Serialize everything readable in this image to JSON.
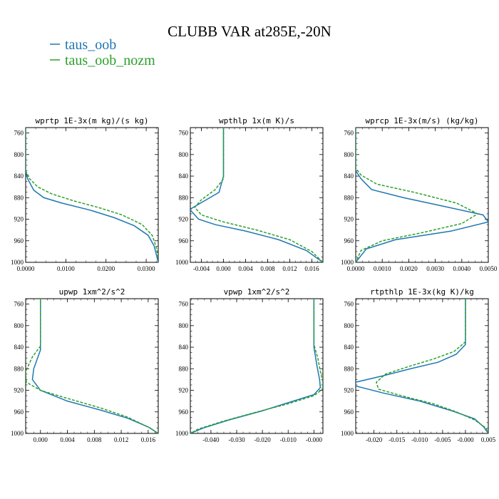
{
  "figure": {
    "title": "CLUBB VAR at285E,-20N",
    "legend": [
      {
        "name": "taus_oob",
        "color": "#1f77b4",
        "dash": "solid"
      },
      {
        "name": "taus_oob_nozm",
        "color": "#2ca02c",
        "dash": "dashed"
      }
    ]
  },
  "chart_data": [
    {
      "type": "line",
      "title": "wprtp  1E-3x(m kg)/(s kg)",
      "xlim": [
        0.0,
        0.033
      ],
      "ylim": [
        1000,
        750
      ],
      "xticks": [
        0.0,
        0.01,
        0.02,
        0.03
      ],
      "xtick_labels": [
        "0.0000",
        "0.0100",
        "0.0200",
        "0.0300"
      ],
      "yticks": [
        760,
        800,
        840,
        880,
        920,
        960,
        1000
      ],
      "series": [
        {
          "name": "taus_oob",
          "points": [
            [
              0.0,
              750
            ],
            [
              0.0,
              830
            ],
            [
              0.0005,
              845
            ],
            [
              0.002,
              866
            ],
            [
              0.0045,
              880
            ],
            [
              0.009,
              890
            ],
            [
              0.016,
              903
            ],
            [
              0.022,
              917
            ],
            [
              0.027,
              932
            ],
            [
              0.0305,
              950
            ],
            [
              0.032,
              970
            ],
            [
              0.033,
              1000
            ]
          ]
        },
        {
          "name": "taus_oob_nozm",
          "points": [
            [
              0.0,
              750
            ],
            [
              0.0,
              830
            ],
            [
              0.001,
              845
            ],
            [
              0.003,
              860
            ],
            [
              0.0065,
              873
            ],
            [
              0.012,
              886
            ],
            [
              0.018,
              898
            ],
            [
              0.024,
              912
            ],
            [
              0.029,
              930
            ],
            [
              0.0315,
              950
            ],
            [
              0.0325,
              972
            ],
            [
              0.0332,
              1000
            ]
          ]
        }
      ]
    },
    {
      "type": "line",
      "title": "wpthlp  1x(m K)/s",
      "xlim": [
        -0.006,
        0.018
      ],
      "ylim": [
        1000,
        750
      ],
      "xticks": [
        -0.004,
        0.0,
        0.004,
        0.008,
        0.012,
        0.016
      ],
      "xtick_labels": [
        "-0.004",
        "0.000",
        "0.004",
        "0.008",
        "0.012",
        "0.016"
      ],
      "series": [
        {
          "name": "taus_oob",
          "points": [
            [
              0.0,
              750
            ],
            [
              0.0,
              840
            ],
            [
              -0.0008,
              870
            ],
            [
              -0.0058,
              900
            ],
            [
              -0.006,
              903
            ],
            [
              -0.0045,
              920
            ],
            [
              -0.0015,
              930
            ],
            [
              0.004,
              942
            ],
            [
              0.01,
              958
            ],
            [
              0.015,
              978
            ],
            [
              0.018,
              1000
            ]
          ]
        },
        {
          "name": "taus_oob_nozm",
          "points": [
            [
              0.0,
              750
            ],
            [
              0.0,
              845
            ],
            [
              -0.0015,
              865
            ],
            [
              -0.004,
              884
            ],
            [
              -0.0052,
              898
            ],
            [
              -0.004,
              912
            ],
            [
              0.0,
              925
            ],
            [
              0.006,
              940
            ],
            [
              0.012,
              958
            ],
            [
              0.016,
              980
            ],
            [
              0.018,
              1000
            ]
          ]
        }
      ]
    },
    {
      "type": "line",
      "title": "wprcp  1E-3x(m/s) (kg/kg)",
      "xlim": [
        0.0,
        0.005
      ],
      "ylim": [
        1000,
        750
      ],
      "xticks": [
        0.0,
        0.001,
        0.002,
        0.003,
        0.004,
        0.005
      ],
      "xtick_labels": [
        "0.0000",
        "0.0010",
        "0.0020",
        "0.0030",
        "0.0040",
        "0.0050"
      ],
      "series": [
        {
          "name": "taus_oob",
          "points": [
            [
              0.0,
              750
            ],
            [
              0.0,
              830
            ],
            [
              0.0002,
              845
            ],
            [
              0.0006,
              865
            ],
            [
              0.0018,
              880
            ],
            [
              0.0035,
              898
            ],
            [
              0.0048,
              912
            ],
            [
              0.005,
              925
            ],
            [
              0.0036,
              942
            ],
            [
              0.0015,
              958
            ],
            [
              0.0004,
              975
            ],
            [
              0.0,
              1000
            ]
          ]
        },
        {
          "name": "taus_oob_nozm",
          "points": [
            [
              0.0,
              750
            ],
            [
              0.0,
              825
            ],
            [
              0.0002,
              838
            ],
            [
              0.0008,
              855
            ],
            [
              0.0022,
              870
            ],
            [
              0.0038,
              890
            ],
            [
              0.0046,
              910
            ],
            [
              0.004,
              928
            ],
            [
              0.0025,
              945
            ],
            [
              0.001,
              960
            ],
            [
              0.0002,
              978
            ],
            [
              0.0,
              1000
            ]
          ]
        }
      ]
    },
    {
      "type": "line",
      "title": "upwp  1xm^2/s^2",
      "xlim": [
        -0.0022,
        0.0175
      ],
      "ylim": [
        1000,
        750
      ],
      "xticks": [
        0.0,
        0.004,
        0.008,
        0.012,
        0.016
      ],
      "xtick_labels": [
        "0.000",
        "0.004",
        "0.008",
        "0.012",
        "0.016"
      ],
      "series": [
        {
          "name": "taus_oob",
          "points": [
            [
              0.0,
              750
            ],
            [
              0.0,
              845
            ],
            [
              -0.001,
              880
            ],
            [
              -0.0012,
              900
            ],
            [
              0.0,
              920
            ],
            [
              0.004,
              940
            ],
            [
              0.009,
              957
            ],
            [
              0.013,
              972
            ],
            [
              0.016,
              988
            ],
            [
              0.0175,
              1000
            ]
          ]
        },
        {
          "name": "taus_oob_nozm",
          "points": [
            [
              0.0,
              750
            ],
            [
              0.0,
              838
            ],
            [
              -0.0012,
              858
            ],
            [
              -0.0022,
              885
            ],
            [
              -0.0021,
              905
            ],
            [
              0.0,
              920
            ],
            [
              0.004,
              935
            ],
            [
              0.009,
              953
            ],
            [
              0.013,
              970
            ],
            [
              0.0163,
              990
            ],
            [
              0.0175,
              1000
            ]
          ]
        }
      ]
    },
    {
      "type": "line",
      "title": "vpwp  1xm^2/s^2",
      "xlim": [
        -0.048,
        0.0035
      ],
      "ylim": [
        1000,
        750
      ],
      "xticks": [
        -0.04,
        -0.03,
        -0.02,
        -0.01,
        0.0
      ],
      "xtick_labels": [
        "-0.040",
        "-0.030",
        "-0.020",
        "-0.010",
        "-0.000"
      ],
      "series": [
        {
          "name": "taus_oob",
          "points": [
            [
              0.0,
              750
            ],
            [
              0.0,
              840
            ],
            [
              0.0012,
              875
            ],
            [
              0.0022,
              900
            ],
            [
              0.0025,
              915
            ],
            [
              0.0,
              928
            ],
            [
              -0.008,
              940
            ],
            [
              -0.02,
              958
            ],
            [
              -0.033,
              975
            ],
            [
              -0.043,
              990
            ],
            [
              -0.048,
              1000
            ]
          ]
        },
        {
          "name": "taus_oob_nozm",
          "points": [
            [
              0.0,
              750
            ],
            [
              0.0,
              835
            ],
            [
              0.0015,
              860
            ],
            [
              0.0025,
              885
            ],
            [
              0.0035,
              905
            ],
            [
              0.0033,
              918
            ],
            [
              0.0,
              930
            ],
            [
              -0.01,
              945
            ],
            [
              -0.022,
              960
            ],
            [
              -0.035,
              977
            ],
            [
              -0.045,
              992
            ],
            [
              -0.048,
              1000
            ]
          ]
        }
      ]
    },
    {
      "type": "line",
      "title": "rtpthlp  1E-3x(kg K)/kg",
      "xlim": [
        -0.024,
        0.005
      ],
      "ylim": [
        1000,
        750
      ],
      "xticks": [
        -0.02,
        -0.015,
        -0.01,
        -0.005,
        0.0,
        0.005
      ],
      "xtick_labels": [
        "-0.020",
        "-0.015",
        "-0.010",
        "-0.005",
        "-0.000",
        "0.005"
      ],
      "series": [
        {
          "name": "taus_oob",
          "points": [
            [
              0.0,
              750
            ],
            [
              0.0,
              835
            ],
            [
              -0.002,
              853
            ],
            [
              -0.006,
              868
            ],
            [
              -0.012,
              880
            ],
            [
              -0.018,
              893
            ],
            [
              -0.024,
              905
            ],
            [
              -0.024,
              912
            ],
            [
              -0.018,
              925
            ],
            [
              -0.01,
              940
            ],
            [
              -0.003,
              958
            ],
            [
              0.002,
              973
            ],
            [
              0.004,
              988
            ],
            [
              0.005,
              1000
            ]
          ]
        },
        {
          "name": "taus_oob_nozm",
          "points": [
            [
              0.0,
              750
            ],
            [
              0.0,
              830
            ],
            [
              -0.0025,
              848
            ],
            [
              -0.007,
              862
            ],
            [
              -0.0125,
              876
            ],
            [
              -0.0175,
              890
            ],
            [
              -0.0195,
              905
            ],
            [
              -0.019,
              918
            ],
            [
              -0.014,
              930
            ],
            [
              -0.007,
              945
            ],
            [
              -0.002,
              960
            ],
            [
              0.002,
              975
            ],
            [
              0.0045,
              990
            ],
            [
              0.005,
              1000
            ]
          ]
        }
      ]
    }
  ]
}
